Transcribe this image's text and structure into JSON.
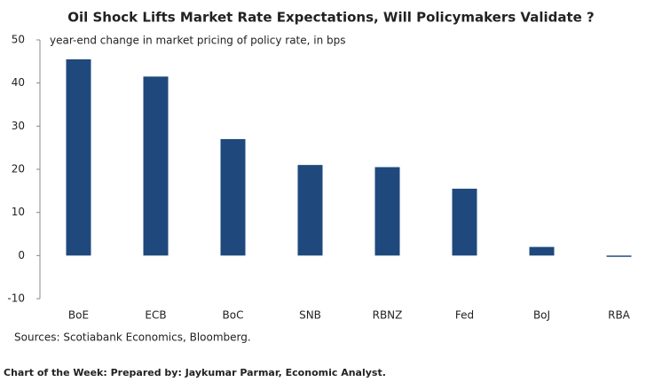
{
  "chart_data": {
    "type": "bar",
    "title": "Oil Shock Lifts Market Rate Expectations, Will Policymakers Validate ?",
    "subtitle": "year-end change in market pricing of policy rate, in bps",
    "categories": [
      "BoE",
      "ECB",
      "BoC",
      "SNB",
      "RBNZ",
      "Fed",
      "BoJ",
      "RBA"
    ],
    "values": [
      45.5,
      41.5,
      27,
      21,
      20.5,
      15.5,
      2,
      -0.3
    ],
    "color": "#1f497d",
    "ylim": [
      -10,
      50
    ],
    "yticks": [
      -10,
      0,
      10,
      20,
      30,
      40,
      50
    ],
    "grid": false,
    "source": "Sources: Scotiabank Economics, Bloomberg.",
    "footer": "Chart of the Week: Prepared by: Jaykumar Parmar, Economic Analyst."
  }
}
